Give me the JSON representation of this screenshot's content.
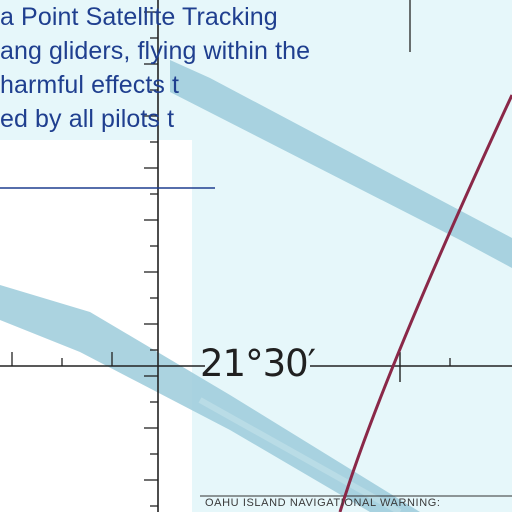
{
  "chart_notice": {
    "lines": [
      "a Point Satellite Tracking",
      "ang gliders, flying within the",
      "harmful effects t",
      "ed by all pilots t"
    ]
  },
  "latitude_label": "21°30′",
  "footer_warning": "OAHU ISLAND   NAVIGATIONAL WARNING:",
  "colors": {
    "water": "#e6f7fa",
    "land": "#ffffff",
    "airway": "#9ccbdb",
    "boundary": "#8a2848",
    "graticule": "#222222",
    "notice_text": "#1f3f8f"
  }
}
